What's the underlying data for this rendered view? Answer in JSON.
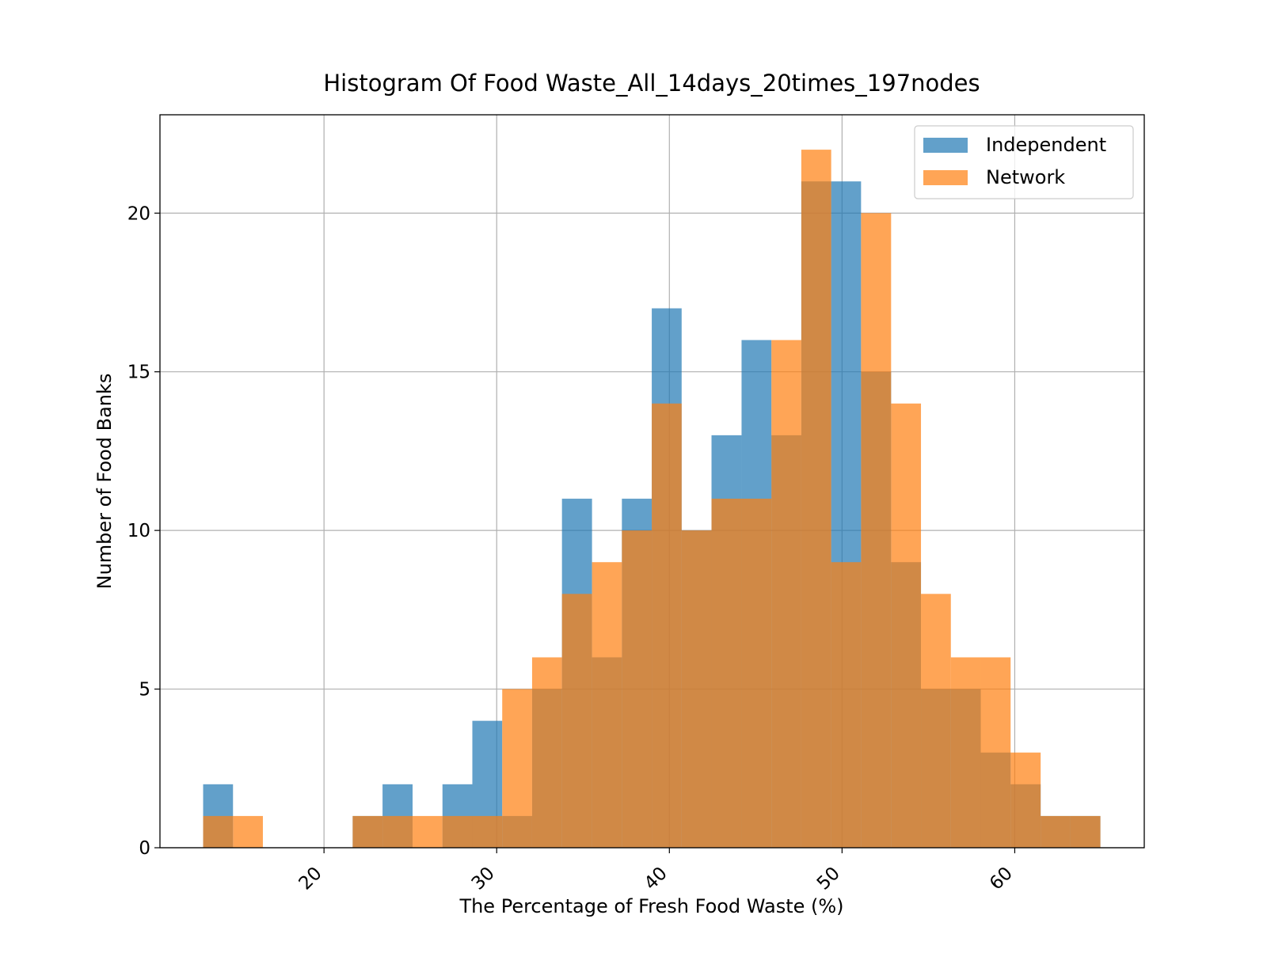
{
  "chart_data": {
    "type": "bar",
    "subtype": "overlapping-histogram",
    "title": "Histogram Of Food Waste_All_14days_20times_197nodes",
    "xlabel": "The Percentage of Fresh Food Waste (%)",
    "ylabel": "Number of Food Banks",
    "xlim": [
      10.5,
      67.5
    ],
    "ylim": [
      0,
      23.1
    ],
    "xticks": [
      20,
      30,
      40,
      50,
      60
    ],
    "yticks": [
      0,
      5,
      10,
      15,
      20
    ],
    "xtick_rotation_deg": 45,
    "grid": true,
    "legend_position": "top-right",
    "series": [
      {
        "name": "Independent",
        "color": "#1f77b4",
        "opacity": 0.7,
        "bins": [
          {
            "x0": 13.0,
            "x1": 14.73,
            "count": 2
          },
          {
            "x0": 21.66,
            "x1": 23.39,
            "count": 1
          },
          {
            "x0": 23.39,
            "x1": 25.13,
            "count": 2
          },
          {
            "x0": 26.86,
            "x1": 28.59,
            "count": 2
          },
          {
            "x0": 28.59,
            "x1": 30.32,
            "count": 4
          },
          {
            "x0": 30.32,
            "x1": 32.05,
            "count": 1
          },
          {
            "x0": 32.05,
            "x1": 33.78,
            "count": 5
          },
          {
            "x0": 33.78,
            "x1": 35.52,
            "count": 11
          },
          {
            "x0": 35.52,
            "x1": 37.25,
            "count": 6
          },
          {
            "x0": 37.25,
            "x1": 38.98,
            "count": 11
          },
          {
            "x0": 38.98,
            "x1": 40.71,
            "count": 17
          },
          {
            "x0": 40.71,
            "x1": 42.44,
            "count": 10
          },
          {
            "x0": 42.44,
            "x1": 44.18,
            "count": 13
          },
          {
            "x0": 44.18,
            "x1": 45.91,
            "count": 16
          },
          {
            "x0": 45.91,
            "x1": 47.64,
            "count": 13
          },
          {
            "x0": 47.64,
            "x1": 49.37,
            "count": 21
          },
          {
            "x0": 49.37,
            "x1": 51.1,
            "count": 21
          },
          {
            "x0": 51.1,
            "x1": 52.84,
            "count": 15
          },
          {
            "x0": 52.84,
            "x1": 54.57,
            "count": 9
          },
          {
            "x0": 54.57,
            "x1": 56.3,
            "count": 5
          },
          {
            "x0": 56.3,
            "x1": 58.03,
            "count": 5
          },
          {
            "x0": 58.03,
            "x1": 59.76,
            "count": 3
          },
          {
            "x0": 59.76,
            "x1": 61.5,
            "count": 2
          },
          {
            "x0": 61.5,
            "x1": 63.23,
            "count": 1
          },
          {
            "x0": 63.23,
            "x1": 64.96,
            "count": 1
          }
        ]
      },
      {
        "name": "Network",
        "color": "#ff7f0e",
        "opacity": 0.7,
        "bins": [
          {
            "x0": 13.0,
            "x1": 14.73,
            "count": 1
          },
          {
            "x0": 14.73,
            "x1": 16.46,
            "count": 1
          },
          {
            "x0": 21.66,
            "x1": 23.39,
            "count": 1
          },
          {
            "x0": 23.39,
            "x1": 25.13,
            "count": 1
          },
          {
            "x0": 25.13,
            "x1": 26.86,
            "count": 1
          },
          {
            "x0": 26.86,
            "x1": 28.59,
            "count": 1
          },
          {
            "x0": 28.59,
            "x1": 30.32,
            "count": 1
          },
          {
            "x0": 30.32,
            "x1": 32.05,
            "count": 5
          },
          {
            "x0": 32.05,
            "x1": 33.78,
            "count": 6
          },
          {
            "x0": 33.78,
            "x1": 35.52,
            "count": 8
          },
          {
            "x0": 35.52,
            "x1": 37.25,
            "count": 9
          },
          {
            "x0": 37.25,
            "x1": 38.98,
            "count": 10
          },
          {
            "x0": 38.98,
            "x1": 40.71,
            "count": 14
          },
          {
            "x0": 40.71,
            "x1": 42.44,
            "count": 10
          },
          {
            "x0": 42.44,
            "x1": 44.18,
            "count": 11
          },
          {
            "x0": 44.18,
            "x1": 45.91,
            "count": 11
          },
          {
            "x0": 45.91,
            "x1": 47.64,
            "count": 16
          },
          {
            "x0": 47.64,
            "x1": 49.37,
            "count": 22
          },
          {
            "x0": 49.37,
            "x1": 51.1,
            "count": 9
          },
          {
            "x0": 51.1,
            "x1": 52.84,
            "count": 20
          },
          {
            "x0": 52.84,
            "x1": 54.57,
            "count": 14
          },
          {
            "x0": 54.57,
            "x1": 56.3,
            "count": 8
          },
          {
            "x0": 56.3,
            "x1": 58.03,
            "count": 6
          },
          {
            "x0": 58.03,
            "x1": 59.76,
            "count": 6
          },
          {
            "x0": 59.76,
            "x1": 61.5,
            "count": 3
          },
          {
            "x0": 61.5,
            "x1": 63.23,
            "count": 1
          },
          {
            "x0": 63.23,
            "x1": 64.96,
            "count": 1
          }
        ]
      }
    ]
  }
}
